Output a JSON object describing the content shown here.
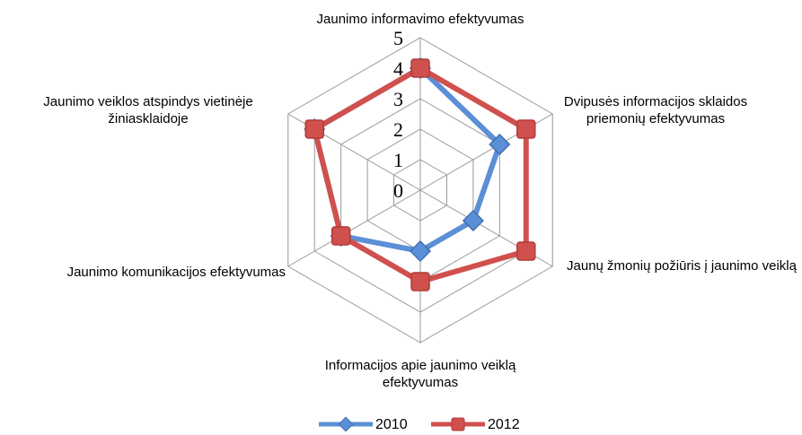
{
  "chart_data": {
    "type": "radar",
    "categories": [
      "Jaunimo informavimo efektyvumas",
      "Dvipusės informacijos sklaidos priemonių efektyvumas",
      "Jaunų žmonių požiūris į jaunimo veiklą",
      "Informacijos apie jaunimo veiklą efektyvumas",
      "Jaunimo komunikacijos efektyvumas",
      "Jaunimo veiklos atspindys vietinėje žiniasklaidoje"
    ],
    "series": [
      {
        "name": "2010",
        "color": "#5b8fd6",
        "marker": "diamond",
        "values": [
          4,
          3,
          2,
          2,
          3,
          4
        ]
      },
      {
        "name": "2012",
        "color": "#d0504d",
        "marker": "square",
        "values": [
          4,
          4,
          4,
          3,
          3,
          4
        ]
      }
    ],
    "rlim": [
      0,
      5
    ],
    "rticks": [
      0,
      1,
      2,
      3,
      4,
      5
    ],
    "grid": true,
    "legend": "bottom"
  }
}
